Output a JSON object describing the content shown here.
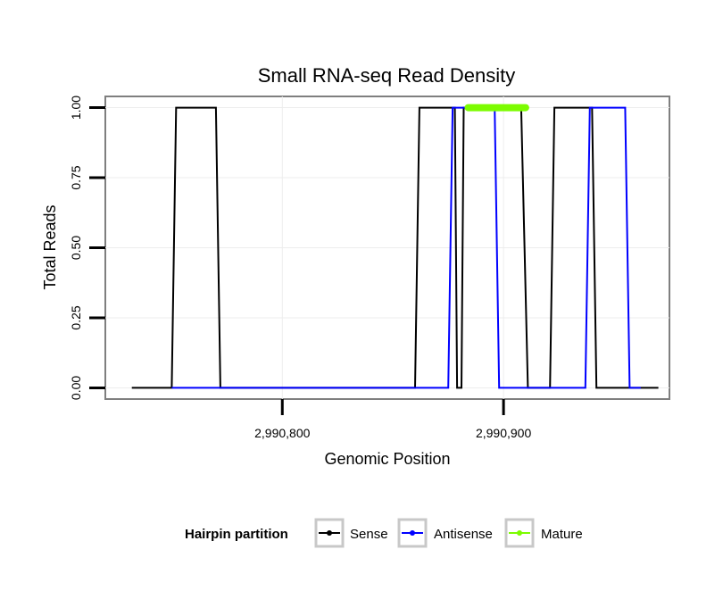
{
  "chart_data": {
    "type": "line",
    "title": "Small RNA-seq Read Density",
    "xlabel": "Genomic Position",
    "ylabel": "Total Reads",
    "xlim": [
      2990720,
      2990975
    ],
    "ylim": [
      -0.04,
      1.04
    ],
    "x_ticks": [
      2990800,
      2990900
    ],
    "x_tick_labels": [
      "2,990,800",
      "2,990,900"
    ],
    "y_ticks": [
      0,
      0.25,
      0.5,
      0.75,
      1
    ],
    "y_tick_labels": [
      "0.00",
      "0.25",
      "0.50",
      "0.75",
      "1.00"
    ],
    "grid": true,
    "series": [
      {
        "name": "Sense",
        "color": "#000000",
        "x": [
          2990732,
          2990750,
          2990752,
          2990770,
          2990772,
          2990860,
          2990862,
          2990875,
          2990878,
          2990879,
          2990881,
          2990882,
          2990884,
          2990908,
          2990911,
          2990921,
          2990923,
          2990940,
          2990942,
          2990970
        ],
        "values": [
          0,
          0,
          1,
          1,
          0,
          0,
          1,
          1,
          1,
          0,
          0,
          1,
          1,
          1,
          0,
          0,
          1,
          1,
          0,
          0
        ]
      },
      {
        "name": "Antisense",
        "color": "#0000ff",
        "x": [
          2990750,
          2990772,
          2990875,
          2990877,
          2990884,
          2990896,
          2990898,
          2990911,
          2990937,
          2990939,
          2990955,
          2990957,
          2990962
        ],
        "values": [
          0,
          0,
          0,
          1,
          1,
          1,
          0,
          0,
          0,
          1,
          1,
          0,
          0
        ]
      },
      {
        "name": "Mature",
        "color": "#7cfc00",
        "x": [
          2990884,
          2990910
        ],
        "values": [
          1,
          1
        ]
      }
    ],
    "legend": {
      "title": "Hairpin partition",
      "position": "bottom",
      "entries": [
        "Sense",
        "Antisense",
        "Mature"
      ]
    }
  }
}
